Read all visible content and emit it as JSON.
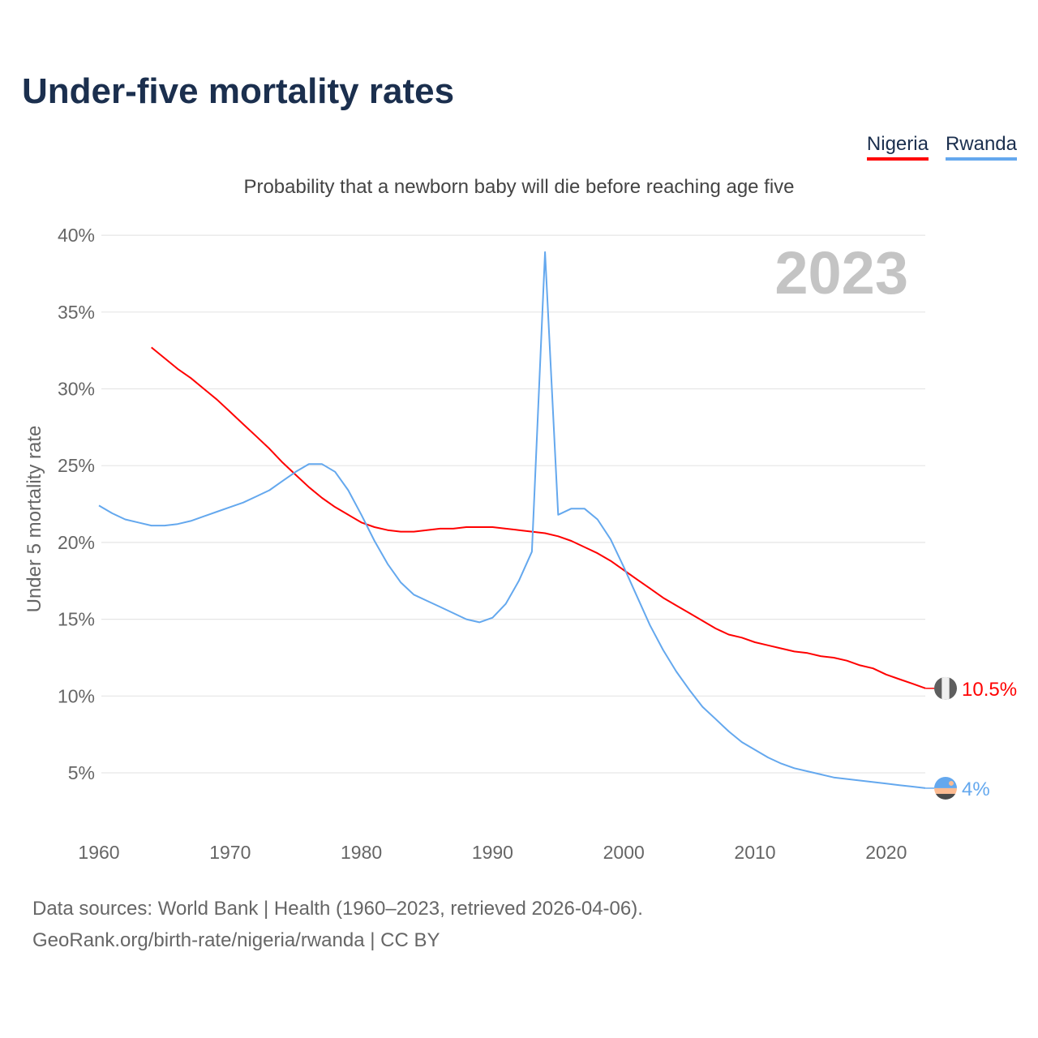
{
  "title": "Under-five mortality rates",
  "legend": [
    {
      "label": "Nigeria",
      "color": "#ff0000"
    },
    {
      "label": "Rwanda",
      "color": "#64a8ee"
    }
  ],
  "subtitle": "Probability that a newborn baby will die before reaching age five",
  "year_label": "2023",
  "footer": {
    "line1": "Data sources: World Bank | Health (1960–2023, retrieved 2026-04-06).",
    "line2": "GeoRank.org/birth-rate/nigeria/rwanda | CC BY"
  },
  "chart_data": {
    "type": "line",
    "title": "Under-five mortality rates",
    "subtitle": "Probability that a newborn baby will die before reaching age five",
    "xlabel": "",
    "ylabel": "Under 5 mortality rate",
    "xlim": [
      1960,
      2023
    ],
    "ylim": [
      0,
      40
    ],
    "x_ticks": [
      1960,
      1970,
      1980,
      1990,
      2000,
      2010,
      2020
    ],
    "y_ticks": [
      5,
      10,
      15,
      20,
      25,
      30,
      35,
      40
    ],
    "y_tick_labels": [
      "5%",
      "10%",
      "15%",
      "20%",
      "25%",
      "30%",
      "35%",
      "40%"
    ],
    "grid": true,
    "legend_position": "top-right",
    "series": [
      {
        "name": "Nigeria",
        "color": "#ff0000",
        "start_year": 1964,
        "end_label": "10.5%",
        "values": [
          32.7,
          32.0,
          31.3,
          30.7,
          30.0,
          29.3,
          28.5,
          27.7,
          26.9,
          26.1,
          25.2,
          24.4,
          23.6,
          22.9,
          22.3,
          21.8,
          21.3,
          21.0,
          20.8,
          20.7,
          20.7,
          20.8,
          20.9,
          20.9,
          21.0,
          21.0,
          21.0,
          20.9,
          20.8,
          20.7,
          20.6,
          20.4,
          20.1,
          19.7,
          19.3,
          18.8,
          18.2,
          17.6,
          17.0,
          16.4,
          15.9,
          15.4,
          14.9,
          14.4,
          14.0,
          13.8,
          13.5,
          13.3,
          13.1,
          12.9,
          12.8,
          12.6,
          12.5,
          12.3,
          12.0,
          11.8,
          11.4,
          11.1,
          10.8,
          10.5
        ]
      },
      {
        "name": "Rwanda",
        "color": "#64a8ee",
        "start_year": 1960,
        "end_label": "4%",
        "values": [
          22.4,
          21.9,
          21.5,
          21.3,
          21.1,
          21.1,
          21.2,
          21.4,
          21.7,
          22.0,
          22.3,
          22.6,
          23.0,
          23.4,
          24.0,
          24.6,
          25.1,
          25.1,
          24.6,
          23.4,
          21.8,
          20.1,
          18.6,
          17.4,
          16.6,
          16.2,
          15.8,
          15.4,
          15.0,
          14.8,
          15.1,
          16.0,
          17.5,
          19.4,
          38.9,
          21.8,
          22.2,
          22.2,
          21.5,
          20.2,
          18.4,
          16.5,
          14.6,
          13.0,
          11.6,
          10.4,
          9.3,
          8.5,
          7.7,
          7.0,
          6.5,
          6.0,
          5.6,
          5.3,
          5.1,
          4.9,
          4.7,
          4.6,
          4.5,
          4.4,
          4.3,
          4.2,
          4.1,
          4.0
        ]
      }
    ]
  }
}
